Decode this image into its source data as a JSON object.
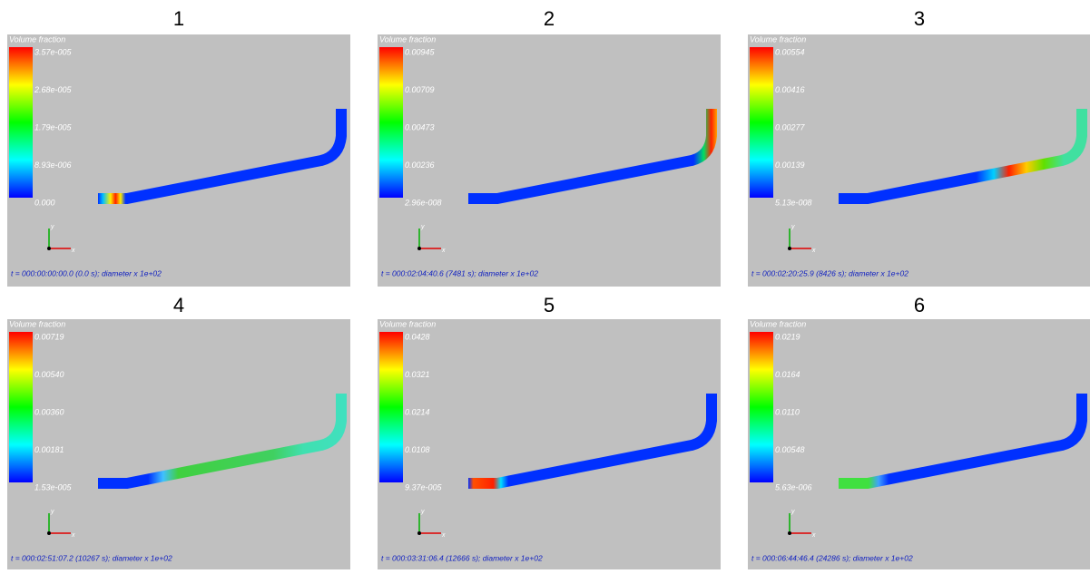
{
  "panels": [
    {
      "label": "1",
      "legend_title": "Volume fraction",
      "legend_ticks": [
        "3.57e-005",
        "2.68e-005",
        "1.79e-005",
        "8.93e-006",
        "0.000"
      ],
      "axes": [
        "y",
        "x"
      ],
      "time": "t = 000:00:00:00.0 (0.0 s); diameter x 1e+02"
    },
    {
      "label": "2",
      "legend_title": "Volume fraction",
      "legend_ticks": [
        "0.00945",
        "0.00709",
        "0.00473",
        "0.00236",
        "2.96e-008"
      ],
      "axes": [
        "y",
        "x"
      ],
      "time": "t = 000:02:04:40.6 (7481 s); diameter x 1e+02"
    },
    {
      "label": "3",
      "legend_title": "Volume fraction",
      "legend_ticks": [
        "0.00554",
        "0.00416",
        "0.00277",
        "0.00139",
        "5.13e-008"
      ],
      "axes": [
        "y",
        "x"
      ],
      "time": "t = 000:02:20:25.9 (8426 s); diameter x 1e+02"
    },
    {
      "label": "4",
      "legend_title": "Volume fraction",
      "legend_ticks": [
        "0.00719",
        "0.00540",
        "0.00360",
        "0.00181",
        "1.53e-005"
      ],
      "axes": [
        "y",
        "x"
      ],
      "time": "t = 000:02:51:07.2 (10267 s); diameter x 1e+02"
    },
    {
      "label": "5",
      "legend_title": "Volume fraction",
      "legend_ticks": [
        "0.0428",
        "0.0321",
        "0.0214",
        "0.0108",
        "9.37e-005"
      ],
      "axes": [
        "y",
        "x"
      ],
      "time": "t = 000:03:31:06.4 (12666 s); diameter x 1e+02"
    },
    {
      "label": "6",
      "legend_title": "Volume fraction",
      "legend_ticks": [
        "0.0219",
        "0.0164",
        "0.0110",
        "0.00548",
        "5.63e-006"
      ],
      "axes": [
        "y",
        "x"
      ],
      "time": "t = 000:06:44:46.4 (24286 s); diameter x 1e+02"
    }
  ]
}
